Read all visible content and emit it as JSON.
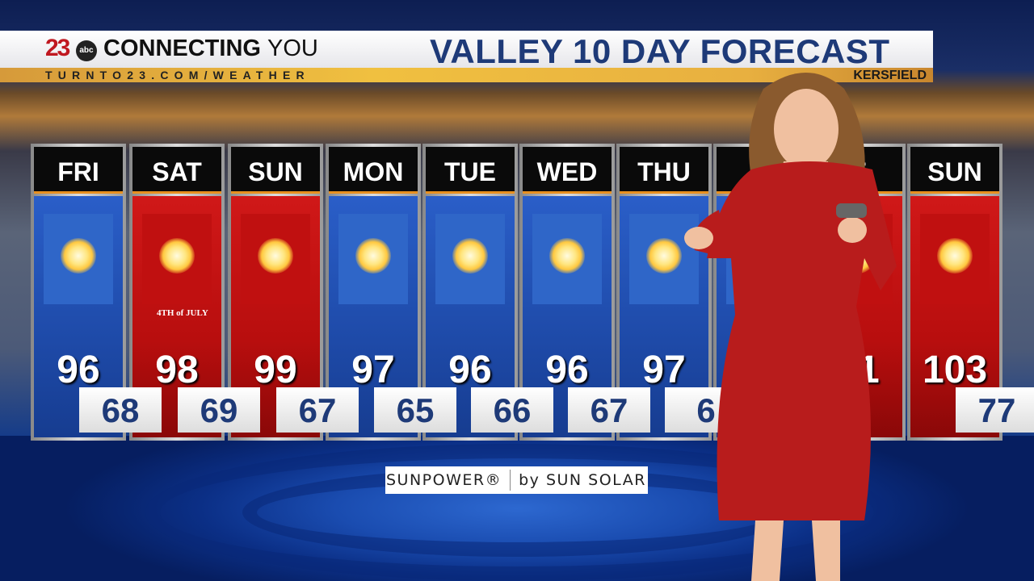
{
  "banner": {
    "logo_number": "23",
    "logo_network": "abc",
    "slogan_bold": "CONNECTING",
    "slogan_light": "YOU",
    "url": "TURNTO23.COM/WEATHER",
    "title": "VALLEY 10 DAY FORECAST",
    "location_visible": "KERSFIELD"
  },
  "forecast": [
    {
      "day": "FRI",
      "high": "96",
      "low": "68",
      "color": "blue",
      "icon": "sun-icon"
    },
    {
      "day": "SAT",
      "high": "98",
      "low": "69",
      "color": "red",
      "icon": "sun-icon",
      "badge": "4TH of JULY"
    },
    {
      "day": "SUN",
      "high": "99",
      "low": "67",
      "color": "red",
      "icon": "sun-icon"
    },
    {
      "day": "MON",
      "high": "97",
      "low": "65",
      "color": "blue",
      "icon": "sun-icon"
    },
    {
      "day": "TUE",
      "high": "96",
      "low": "66",
      "color": "blue",
      "icon": "sun-icon"
    },
    {
      "day": "WED",
      "high": "96",
      "low": "67",
      "color": "blue",
      "icon": "sun-icon"
    },
    {
      "day": "THU",
      "high": "97",
      "low": "6",
      "color": "blue",
      "icon": "sun-icon"
    },
    {
      "day": "",
      "high": "",
      "low": "",
      "color": "blue",
      "icon": "sun-icon"
    },
    {
      "day": "T",
      "high": "01",
      "low": "",
      "color": "red",
      "icon": "sun-icon"
    },
    {
      "day": "SUN",
      "high": "103",
      "low": "77",
      "color": "red",
      "icon": "sun-icon"
    }
  ],
  "sponsor": {
    "brand": "SUNPOWER®",
    "by": "by SUN SOLAR"
  },
  "colors": {
    "blue_day": "#2a5ec8",
    "red_day": "#c81414",
    "title_navy": "#1e3a78",
    "gold": "#f0c040"
  }
}
